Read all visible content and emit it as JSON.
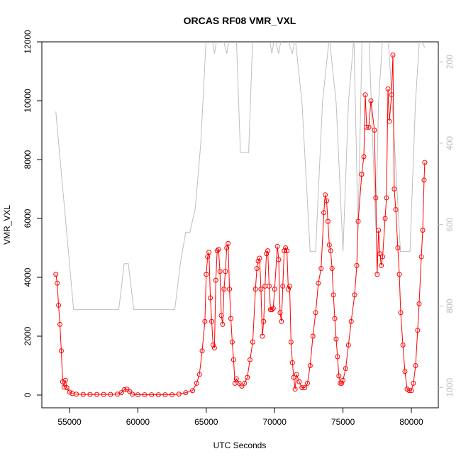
{
  "chart_data": {
    "type": "line",
    "title": "ORCAS RF08 VMR_VXL",
    "xlabel": "UTC Seconds",
    "ylabel": "VMR_VXL",
    "xlim": [
      52977,
      81971
    ],
    "ylim": [
      -434,
      12000
    ],
    "y2lim": [
      1050,
      151
    ],
    "xticks": [
      55000,
      60000,
      65000,
      70000,
      75000,
      80000
    ],
    "yticks": [
      0,
      2000,
      4000,
      6000,
      8000,
      10000,
      12000
    ],
    "y2ticks": [
      200,
      400,
      600,
      800,
      1000
    ],
    "series": [
      {
        "color": "#ff0000",
        "markers": true,
        "x": [
          54000,
          54100,
          54200,
          54300,
          54400,
          54500,
          54600,
          54700,
          54800,
          55000,
          55200,
          55500,
          56000,
          56500,
          57000,
          57500,
          58000,
          58500,
          58800,
          59000,
          59200,
          59400,
          59600,
          60000,
          60500,
          61000,
          61500,
          62000,
          62500,
          63000,
          63500,
          64000,
          64300,
          64500,
          64700,
          64900,
          65000,
          65100,
          65200,
          65300,
          65400,
          65500,
          65600,
          65700,
          65800,
          65900,
          66000,
          66100,
          66200,
          66300,
          66400,
          66500,
          66600,
          66700,
          66800,
          66900,
          67000,
          67100,
          67200,
          67400,
          67600,
          67800,
          68000,
          68200,
          68400,
          68600,
          68700,
          68800,
          68900,
          69000,
          69100,
          69200,
          69300,
          69400,
          69500,
          69600,
          69700,
          69800,
          69900,
          70000,
          70200,
          70300,
          70400,
          70500,
          70600,
          70700,
          70800,
          70900,
          71000,
          71100,
          71200,
          71300,
          71400,
          71500,
          71600,
          71800,
          72000,
          72200,
          72400,
          72600,
          72800,
          73000,
          73200,
          73400,
          73600,
          73700,
          73800,
          73900,
          74000,
          74100,
          74200,
          74300,
          74400,
          74500,
          74600,
          74700,
          74800,
          74900,
          75000,
          75200,
          75400,
          75600,
          75850,
          76010,
          76110,
          76370,
          76525,
          76630,
          76730,
          76890,
          77040,
          77300,
          77400,
          77500,
          77600,
          77700,
          77800,
          77900,
          78080,
          78180,
          78290,
          78390,
          78550,
          78650,
          78750,
          78860,
          79010,
          79120,
          79220,
          79380,
          79530,
          79690,
          79840,
          80000,
          80150,
          80310,
          80460,
          80570,
          80730,
          80830,
          80930,
          80980
        ],
        "values": [
          4100,
          3800,
          3050,
          2400,
          1500,
          450,
          270,
          500,
          250,
          100,
          50,
          30,
          20,
          20,
          20,
          20,
          20,
          30,
          80,
          180,
          200,
          120,
          30,
          10,
          10,
          10,
          10,
          10,
          10,
          30,
          80,
          150,
          400,
          700,
          1500,
          2500,
          4100,
          4700,
          4850,
          3300,
          2500,
          1700,
          1600,
          3900,
          4900,
          4950,
          4200,
          2700,
          2400,
          3600,
          4200,
          5000,
          5150,
          3600,
          2600,
          1800,
          1200,
          400,
          550,
          400,
          300,
          400,
          600,
          1200,
          1800,
          3600,
          4300,
          4550,
          4650,
          3600,
          2000,
          2500,
          3700,
          4800,
          4900,
          3700,
          2900,
          2900,
          2950,
          3600,
          5050,
          4600,
          2800,
          2500,
          3700,
          4900,
          5000,
          4900,
          3600,
          3700,
          1800,
          1100,
          600,
          200,
          700,
          450,
          250,
          250,
          400,
          1000,
          2000,
          2800,
          3800,
          4300,
          6200,
          6800,
          6600,
          5900,
          5100,
          4900,
          4300,
          3400,
          2600,
          1900,
          1300,
          650,
          400,
          400,
          500,
          900,
          1700,
          2500,
          3400,
          4400,
          5900,
          7500,
          8100,
          10200,
          9100,
          9100,
          10000,
          9000,
          6700,
          4100,
          5600,
          4800,
          4400,
          4700,
          6000,
          6700,
          10400,
          9300,
          10200,
          11550,
          7000,
          6300,
          5000,
          4100,
          2800,
          1700,
          800,
          200,
          150,
          150,
          400,
          1000,
          2200,
          3100,
          4700,
          5600,
          7300,
          7900
        ]
      },
      {
        "color": "#bebebe",
        "axis": "y2",
        "markers": false,
        "x": [
          54000,
          55300,
          56000,
          58600,
          59000,
          59300,
          59700,
          62700,
          63100,
          63500,
          63800,
          64200,
          64600,
          65000,
          65400,
          65600,
          65800,
          66200,
          66500,
          66700,
          67200,
          67500,
          68100,
          68400,
          69600,
          69800,
          70000,
          70300,
          70500,
          70900,
          71300,
          71500,
          72000,
          72600,
          73000,
          73500,
          74000,
          74500,
          75000,
          75400,
          75800,
          76100,
          76400,
          76900,
          77400,
          77600,
          77900,
          78300,
          78600,
          79200,
          79900,
          80300,
          80600,
          80980
        ],
        "values": [
          322,
          809,
          809,
          809,
          696,
          696,
          809,
          809,
          696,
          619,
          619,
          560,
          400,
          140,
          140,
          180,
          140,
          140,
          180,
          140,
          140,
          423,
          423,
          140,
          140,
          180,
          140,
          180,
          140,
          140,
          180,
          140,
          300,
          666,
          666,
          300,
          140,
          300,
          666,
          300,
          140,
          610,
          140,
          140,
          610,
          300,
          140,
          140,
          300,
          666,
          666,
          300,
          140,
          165
        ]
      }
    ]
  }
}
